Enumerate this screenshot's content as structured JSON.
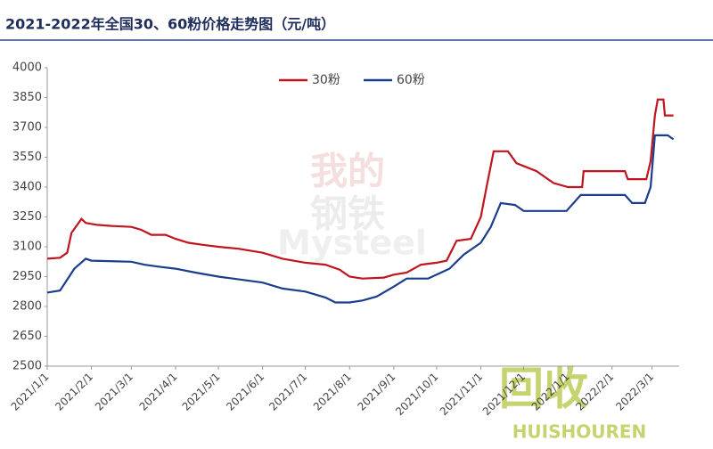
{
  "chart_data": {
    "type": "line",
    "title": "2021-2022年全国30、60粉价格走势图（元/吨）",
    "watermarks": [
      "我的",
      "钢铁",
      "Mysteel",
      "回收",
      "HUISHOUREN"
    ],
    "xlim": [
      "2021/1/1",
      "2022/3/20"
    ],
    "xticks": [
      "2021/1/1",
      "2021/2/1",
      "2021/3/1",
      "2021/4/1",
      "2021/5/1",
      "2021/6/1",
      "2021/7/1",
      "2021/8/1",
      "2021/9/1",
      "2021/10/1",
      "2021/11/1",
      "2021/12/1",
      "2022/1/1",
      "2022/2/1",
      "2022/3/1"
    ],
    "ylim": [
      2500,
      4000
    ],
    "yticks": [
      2500,
      2650,
      2800,
      2950,
      3100,
      3250,
      3400,
      3550,
      3700,
      3850,
      4000
    ],
    "legend": "top",
    "series": [
      {
        "name": "30粉",
        "color": "#c0141e",
        "x": [
          "2021/1/1",
          "2021/1/10",
          "2021/1/15",
          "2021/1/18",
          "2021/1/25",
          "2021/1/28",
          "2021/2/5",
          "2021/2/15",
          "2021/3/1",
          "2021/3/8",
          "2021/3/15",
          "2021/3/25",
          "2021/4/1",
          "2021/4/10",
          "2021/4/20",
          "2021/5/1",
          "2021/5/15",
          "2021/6/1",
          "2021/6/15",
          "2021/7/1",
          "2021/7/15",
          "2021/7/25",
          "2021/8/1",
          "2021/8/10",
          "2021/8/25",
          "2021/9/1",
          "2021/9/10",
          "2021/9/20",
          "2021/10/1",
          "2021/10/8",
          "2021/10/15",
          "2021/10/25",
          "2021/11/1",
          "2021/11/5",
          "2021/11/10",
          "2021/11/20",
          "2021/11/26",
          "2021/12/3",
          "2021/12/10",
          "2021/12/18",
          "2021/12/22",
          "2022/1/1",
          "2022/1/11",
          "2022/1/12",
          "2022/2/10",
          "2022/2/12",
          "2022/2/25",
          "2022/2/28",
          "2022/3/3",
          "2022/3/5",
          "2022/3/9",
          "2022/3/10",
          "2022/3/16"
        ],
        "values": [
          3040,
          3045,
          3070,
          3170,
          3240,
          3220,
          3210,
          3205,
          3200,
          3185,
          3160,
          3160,
          3140,
          3120,
          3110,
          3100,
          3090,
          3070,
          3040,
          3020,
          3010,
          2985,
          2950,
          2940,
          2945,
          2960,
          2970,
          3010,
          3020,
          3030,
          3130,
          3140,
          3250,
          3400,
          3580,
          3580,
          3520,
          3500,
          3480,
          3440,
          3420,
          3400,
          3400,
          3480,
          3480,
          3440,
          3440,
          3530,
          3760,
          3840,
          3840,
          3760,
          3760
        ]
      },
      {
        "name": "60粉",
        "color": "#1a3e8c",
        "x": [
          "2021/1/1",
          "2021/1/10",
          "2021/1/20",
          "2021/1/28",
          "2021/2/1",
          "2021/3/1",
          "2021/3/10",
          "2021/3/20",
          "2021/4/1",
          "2021/4/15",
          "2021/5/1",
          "2021/6/1",
          "2021/6/15",
          "2021/7/1",
          "2021/7/15",
          "2021/7/22",
          "2021/8/1",
          "2021/8/10",
          "2021/8/20",
          "2021/9/1",
          "2021/9/10",
          "2021/9/25",
          "2021/10/1",
          "2021/10/10",
          "2021/10/20",
          "2021/11/1",
          "2021/11/8",
          "2021/11/15",
          "2021/11/25",
          "2021/12/1",
          "2021/12/31",
          "2022/1/10",
          "2022/2/10",
          "2022/2/15",
          "2022/2/24",
          "2022/2/28",
          "2022/3/3",
          "2022/3/12",
          "2022/3/16"
        ],
        "values": [
          2870,
          2880,
          2990,
          3040,
          3030,
          3025,
          3010,
          3000,
          2990,
          2970,
          2950,
          2920,
          2890,
          2875,
          2845,
          2820,
          2820,
          2830,
          2850,
          2900,
          2940,
          2940,
          2960,
          2990,
          3060,
          3120,
          3200,
          3320,
          3310,
          3280,
          3280,
          3360,
          3360,
          3320,
          3320,
          3400,
          3660,
          3660,
          3640
        ]
      }
    ]
  }
}
